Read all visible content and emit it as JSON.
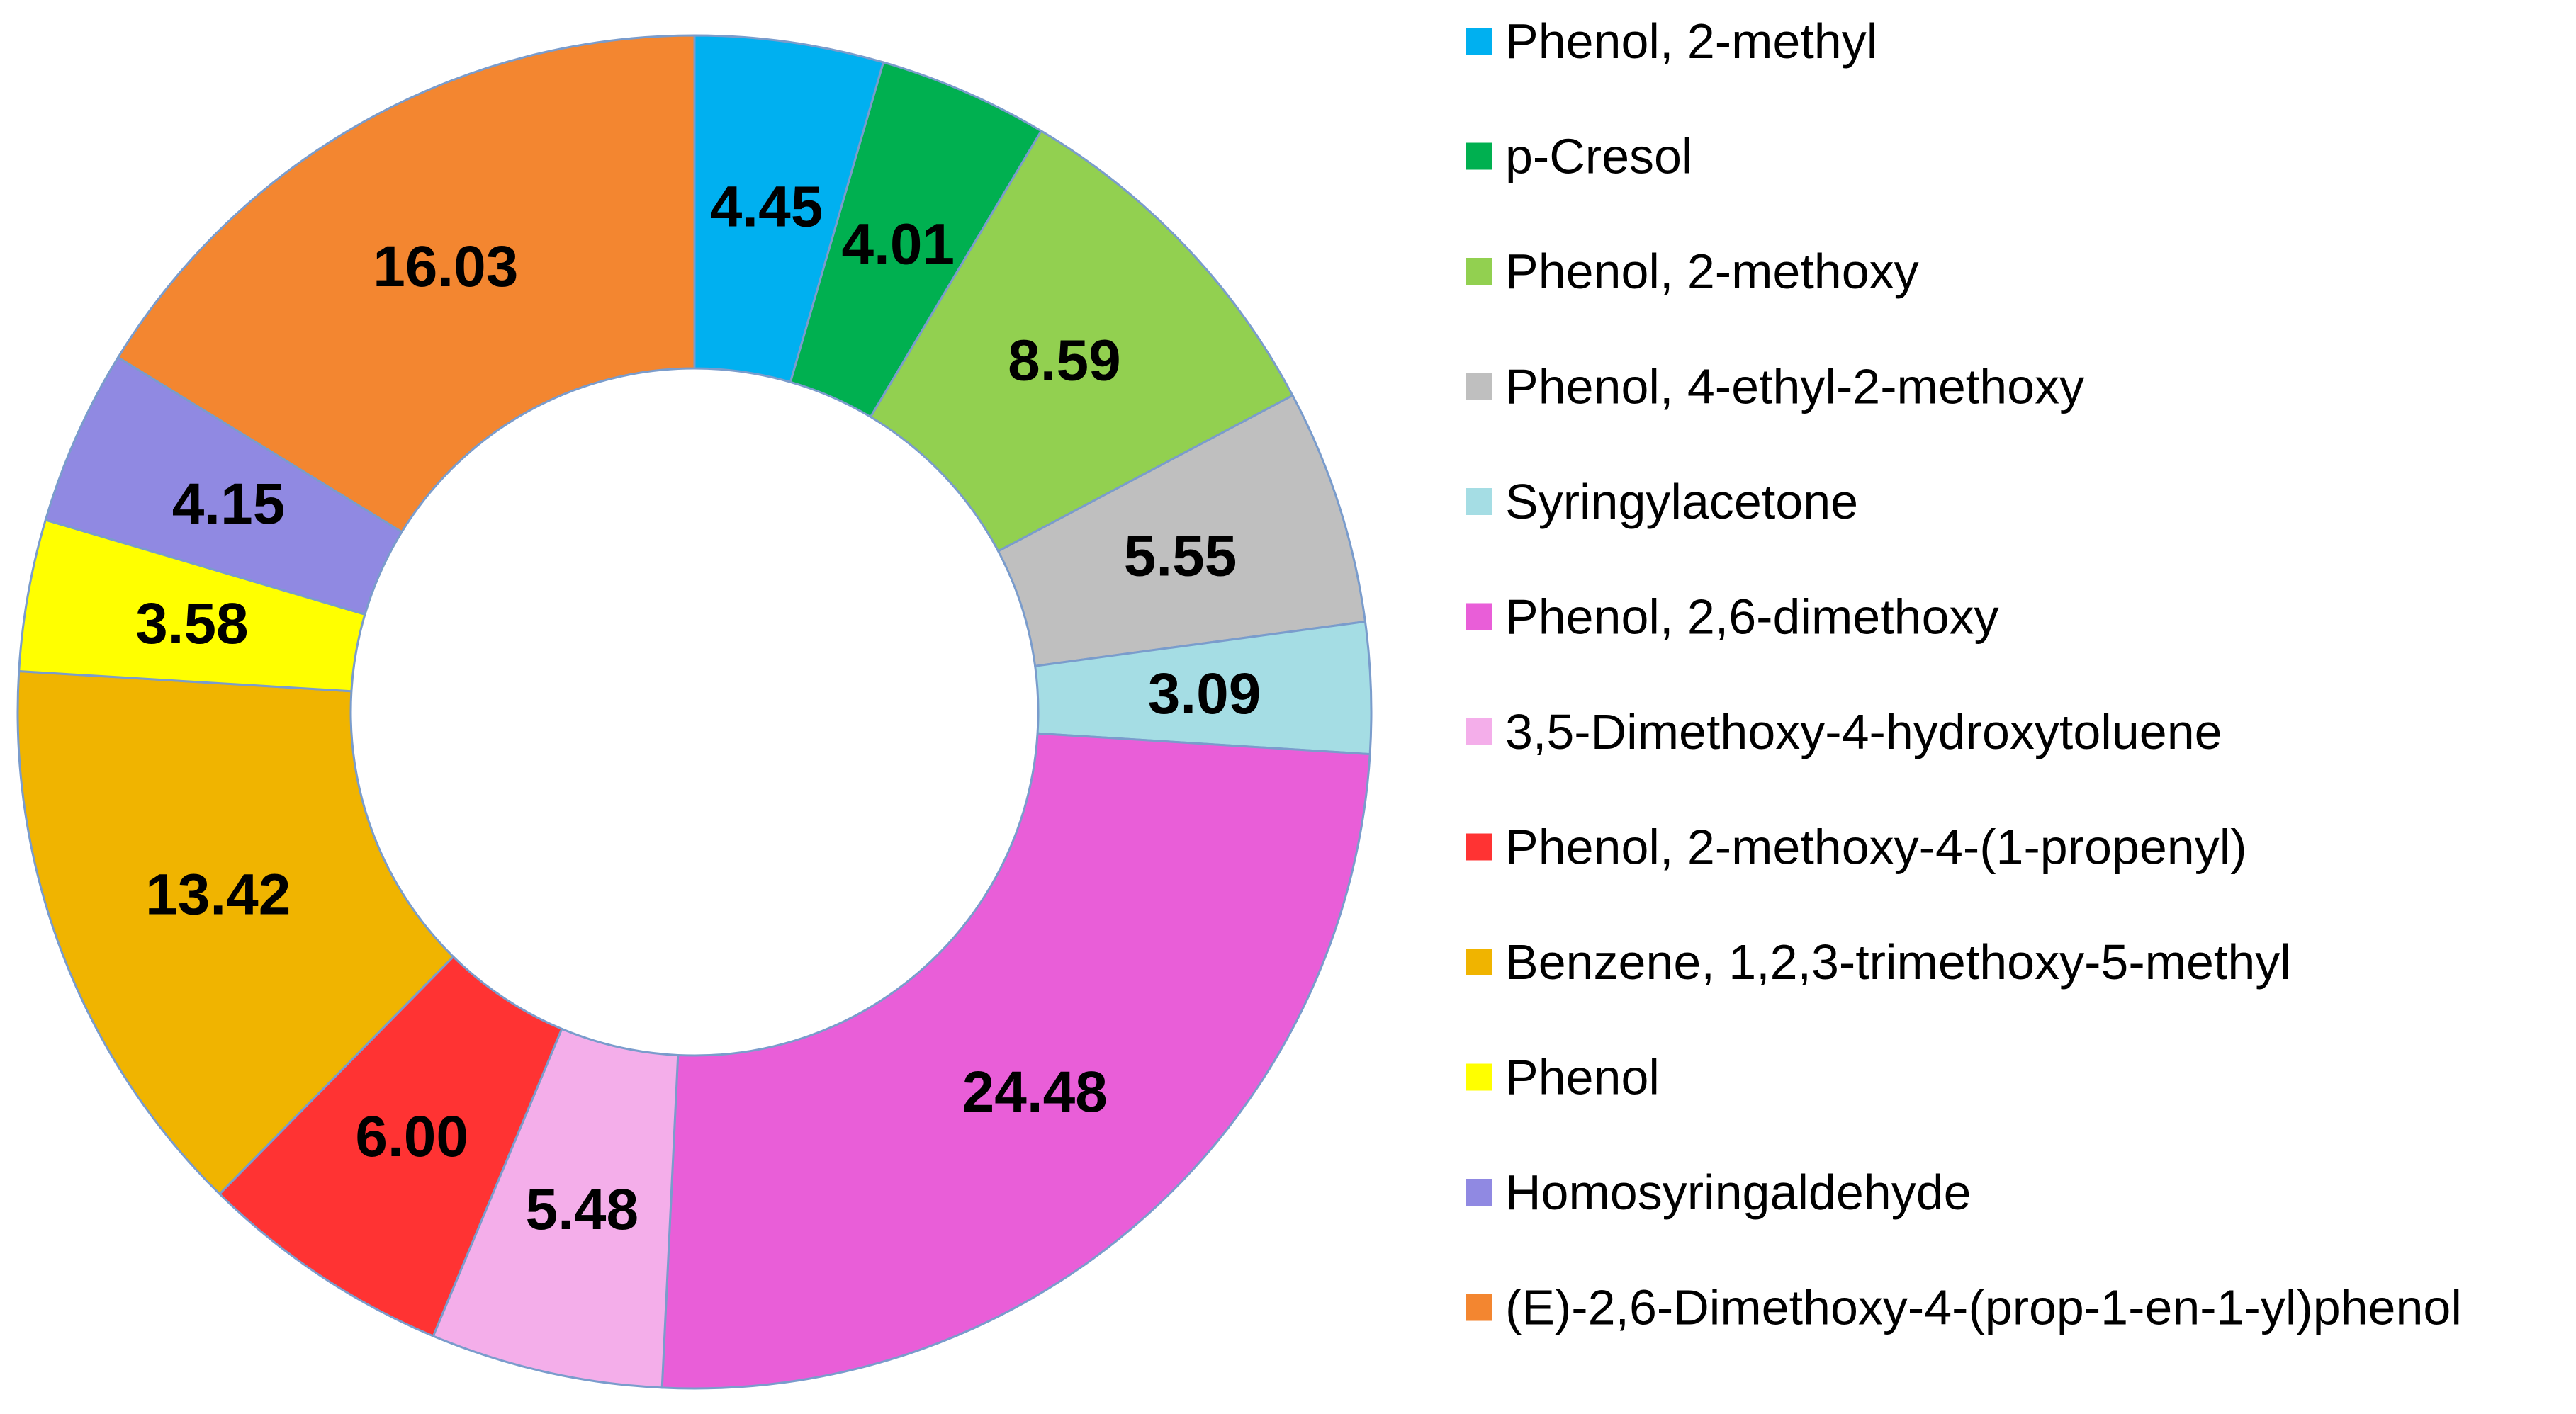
{
  "chart_data": {
    "type": "pie",
    "donut": true,
    "title": "",
    "legend_position": "right",
    "slices": [
      {
        "label": "Phenol, 2-methyl",
        "value": 4.45,
        "value_label": "4.45",
        "color": "#00b0f0"
      },
      {
        "label": "p-Cresol",
        "value": 4.01,
        "value_label": "4.01",
        "color": "#00b050"
      },
      {
        "label": "Phenol, 2-methoxy",
        "value": 8.59,
        "value_label": "8.59",
        "color": "#92d050"
      },
      {
        "label": "Phenol, 4-ethyl-2-methoxy",
        "value": 5.55,
        "value_label": "5.55",
        "color": "#bfbfbf"
      },
      {
        "label": "Syringylacetone",
        "value": 3.09,
        "value_label": "3.09",
        "color": "#a5dde4"
      },
      {
        "label": "Phenol, 2,6-dimethoxy",
        "value": 24.48,
        "value_label": "24.48",
        "color": "#e95ed8"
      },
      {
        "label": "3,5-Dimethoxy-4-hydroxytoluene",
        "value": 5.48,
        "value_label": "5.48",
        "color": "#f4aeea"
      },
      {
        "label": "Phenol, 2-methoxy-4-(1-propenyl)",
        "value": 6.0,
        "value_label": "6.00",
        "color": "#ff3333"
      },
      {
        "label": "Benzene, 1,2,3-trimethoxy-5-methyl",
        "value": 13.42,
        "value_label": "13.42",
        "color": "#f0b400"
      },
      {
        "label": "Phenol",
        "value": 3.58,
        "value_label": "3.58",
        "color": "#ffff00"
      },
      {
        "label": "Homosyringaldehyde",
        "value": 4.15,
        "value_label": "4.15",
        "color": "#9089e2"
      },
      {
        "label": "(E)-2,6-Dimethoxy-4-(prop-1-en-1-yl)phenol",
        "value": 16.03,
        "value_label": "16.03",
        "color": "#f38630"
      }
    ]
  }
}
